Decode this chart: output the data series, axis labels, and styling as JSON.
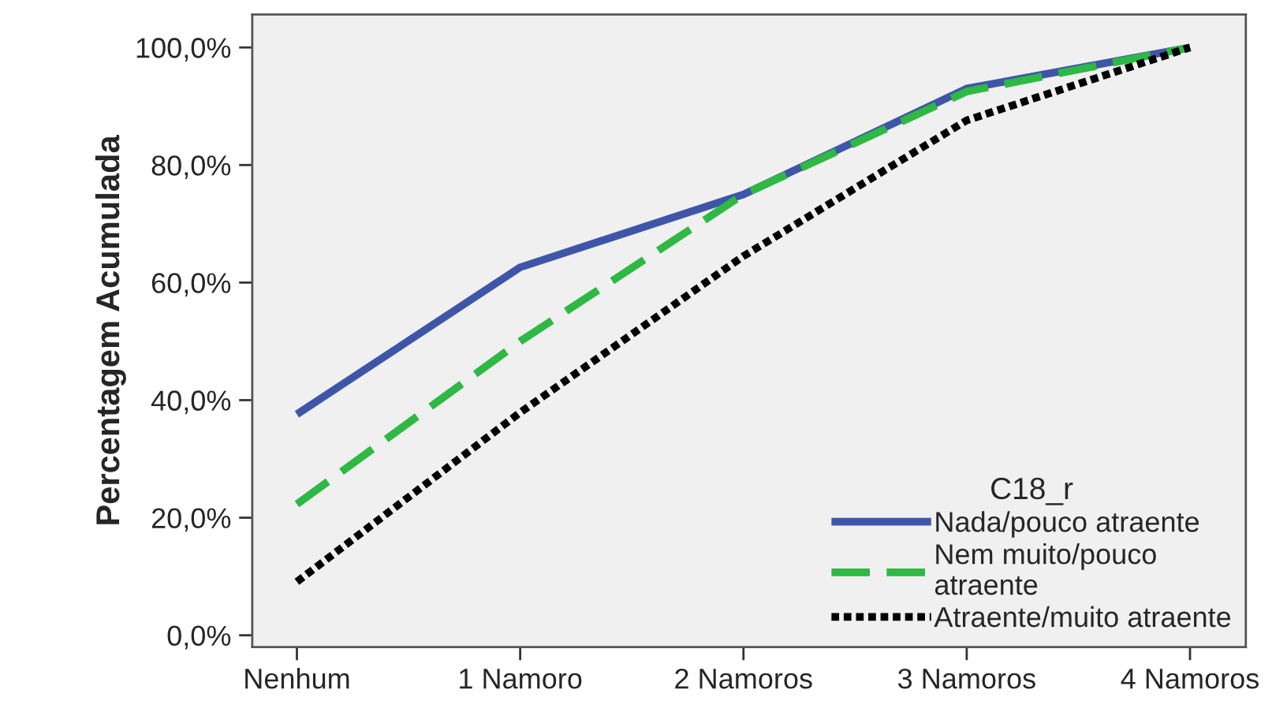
{
  "chart_data": {
    "type": "line",
    "ylabel": "Percentagem Acumulada",
    "legend_title": "C18_r",
    "legend": "bottom right",
    "grid": false,
    "categories": [
      "Nenhum",
      "1 Namoro",
      "2 Namoros",
      "3 Namoros",
      "4 Namoros"
    ],
    "ylim": [
      -2,
      105.6
    ],
    "yticks": [
      {
        "value": 0,
        "label": "0,0%"
      },
      {
        "value": 20,
        "label": "20,0%"
      },
      {
        "value": 40,
        "label": "40,0%"
      },
      {
        "value": 60,
        "label": "60,0%"
      },
      {
        "value": 80,
        "label": "80,0%"
      },
      {
        "value": 100,
        "label": "100,0%"
      }
    ],
    "series": [
      {
        "name": "Nada/pouco atraente",
        "color": "#3f56a8",
        "line_style": "solid",
        "values": [
          37.6,
          62.6,
          75.0,
          93.0,
          100
        ]
      },
      {
        "name": "Nem muito/pouco\natraente",
        "color": "#2eb844",
        "line_style": "dashed",
        "values": [
          22.3,
          50.0,
          75.0,
          92.5,
          100
        ]
      },
      {
        "name": "Atraente/muito atraente",
        "color": "#000000",
        "line_style": "dotted",
        "values": [
          9.1,
          37.9,
          64.5,
          87.6,
          100
        ]
      }
    ]
  }
}
